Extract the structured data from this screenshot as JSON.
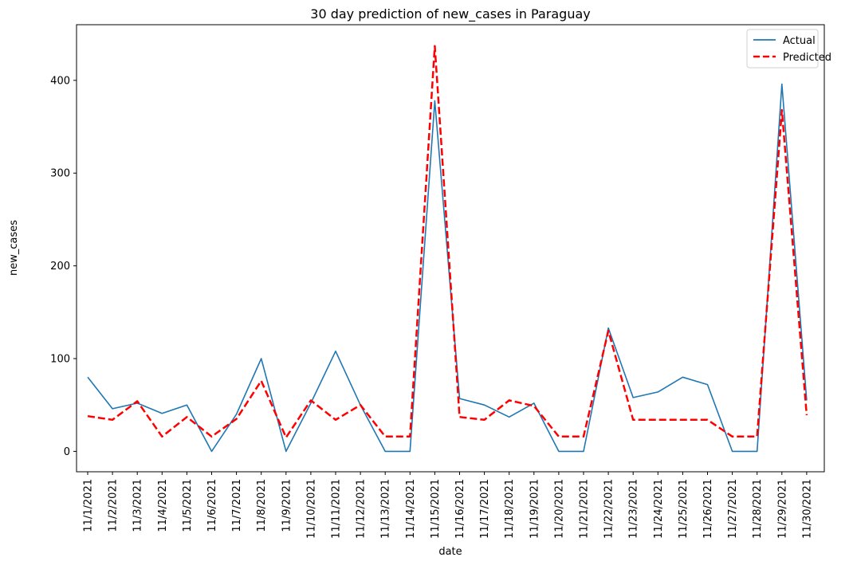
{
  "chart_data": {
    "type": "line",
    "title": "30 day prediction of new_cases in Paraguay",
    "xlabel": "date",
    "ylabel": "new_cases",
    "categories": [
      "11/1/2021",
      "11/2/2021",
      "11/3/2021",
      "11/4/2021",
      "11/5/2021",
      "11/6/2021",
      "11/7/2021",
      "11/8/2021",
      "11/9/2021",
      "11/10/2021",
      "11/11/2021",
      "11/12/2021",
      "11/13/2021",
      "11/14/2021",
      "11/15/2021",
      "11/16/2021",
      "11/17/2021",
      "11/18/2021",
      "11/19/2021",
      "11/20/2021",
      "11/21/2021",
      "11/22/2021",
      "11/23/2021",
      "11/24/2021",
      "11/25/2021",
      "11/26/2021",
      "11/27/2021",
      "11/28/2021",
      "11/29/2021",
      "11/30/2021"
    ],
    "series": [
      {
        "name": "Actual",
        "color": "#1f77b4",
        "style": "solid",
        "values": [
          80,
          46,
          52,
          41,
          50,
          0,
          40,
          100,
          0,
          52,
          108,
          50,
          0,
          0,
          378,
          57,
          50,
          37,
          52,
          0,
          0,
          133,
          58,
          64,
          80,
          72,
          0,
          0,
          396,
          55
        ]
      },
      {
        "name": "Predicted",
        "color": "#ff0000",
        "style": "dashed",
        "values": [
          38,
          34,
          54,
          16,
          37,
          16,
          35,
          76,
          15,
          55,
          34,
          50,
          16,
          16,
          437,
          37,
          34,
          55,
          49,
          16,
          16,
          130,
          34,
          34,
          34,
          34,
          16,
          16,
          368,
          39
        ]
      }
    ],
    "yticks": [
      0,
      100,
      200,
      300,
      400
    ],
    "ylim": [
      -22,
      460
    ],
    "grid": false,
    "legend_position": "top-right"
  }
}
